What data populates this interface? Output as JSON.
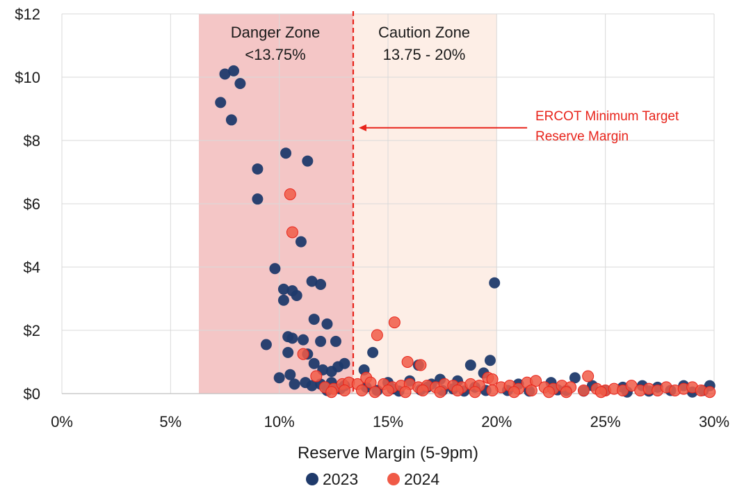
{
  "chart_data": {
    "type": "scatter",
    "xlabel": "Reserve Margin (5-9pm)",
    "ylabel": "",
    "xlim": [
      0,
      30
    ],
    "ylim": [
      0,
      12
    ],
    "x_ticks": [
      0,
      5,
      10,
      15,
      20,
      25,
      30
    ],
    "x_tick_labels": [
      "0%",
      "5%",
      "10%",
      "15%",
      "20%",
      "25%",
      "30%"
    ],
    "y_ticks": [
      0,
      2,
      4,
      6,
      8,
      10,
      12
    ],
    "y_tick_labels": [
      "$0",
      "$2",
      "$4",
      "$6",
      "$8",
      "$10",
      "$12"
    ],
    "grid": true,
    "legend_position": "bottom",
    "zones": [
      {
        "name": "danger-zone",
        "title": "Danger Zone",
        "range_label": "<13.75%",
        "x_from": 6.3,
        "x_to": 13.4,
        "color": "#f4c6c6"
      },
      {
        "name": "caution-zone",
        "title": "Caution Zone",
        "range_label": "13.75 - 20%",
        "x_from": 13.4,
        "x_to": 20.0,
        "color": "#fdeee6"
      }
    ],
    "reference_line": {
      "x": 13.4,
      "color": "#e8231a",
      "label_line1": "ERCOT Minimum Target",
      "label_line2": "Reserve Margin",
      "arrow_from_x": 21.4,
      "arrow_y": 8.4
    },
    "series": [
      {
        "name": "2023",
        "color": "#1f3a6b",
        "points": [
          [
            7.3,
            9.2
          ],
          [
            7.5,
            10.1
          ],
          [
            7.8,
            8.65
          ],
          [
            7.9,
            10.2
          ],
          [
            8.2,
            9.8
          ],
          [
            9.0,
            7.1
          ],
          [
            9.0,
            6.15
          ],
          [
            10.3,
            7.6
          ],
          [
            11.3,
            7.35
          ],
          [
            11.0,
            4.8
          ],
          [
            9.8,
            3.95
          ],
          [
            10.2,
            3.3
          ],
          [
            10.2,
            2.95
          ],
          [
            10.6,
            3.25
          ],
          [
            10.8,
            3.1
          ],
          [
            11.5,
            3.55
          ],
          [
            11.9,
            3.45
          ],
          [
            11.6,
            2.35
          ],
          [
            12.2,
            2.2
          ],
          [
            9.4,
            1.55
          ],
          [
            10.4,
            1.8
          ],
          [
            10.6,
            1.75
          ],
          [
            11.1,
            1.7
          ],
          [
            11.9,
            1.65
          ],
          [
            12.6,
            1.65
          ],
          [
            10.4,
            1.3
          ],
          [
            11.3,
            1.25
          ],
          [
            11.6,
            0.95
          ],
          [
            12.0,
            0.75
          ],
          [
            12.4,
            0.7
          ],
          [
            12.7,
            0.85
          ],
          [
            13.0,
            0.95
          ],
          [
            10.0,
            0.5
          ],
          [
            10.5,
            0.6
          ],
          [
            10.7,
            0.3
          ],
          [
            11.2,
            0.35
          ],
          [
            11.5,
            0.25
          ],
          [
            11.9,
            0.3
          ],
          [
            12.4,
            0.35
          ],
          [
            13.0,
            0.25
          ],
          [
            19.9,
            3.5
          ],
          [
            14.3,
            1.3
          ],
          [
            13.9,
            0.75
          ],
          [
            16.4,
            0.9
          ],
          [
            18.8,
            0.9
          ],
          [
            19.7,
            1.05
          ],
          [
            19.4,
            0.65
          ],
          [
            15.0,
            0.35
          ],
          [
            16.0,
            0.4
          ],
          [
            17.0,
            0.3
          ],
          [
            17.4,
            0.45
          ],
          [
            18.2,
            0.4
          ],
          [
            21.0,
            0.3
          ],
          [
            22.5,
            0.35
          ],
          [
            23.6,
            0.5
          ],
          [
            24.4,
            0.25
          ],
          [
            25.8,
            0.2
          ],
          [
            26.7,
            0.25
          ],
          [
            27.4,
            0.2
          ],
          [
            28.6,
            0.25
          ],
          [
            29.8,
            0.25
          ],
          [
            20.5,
            0.1
          ],
          [
            21.5,
            0.08
          ],
          [
            22.8,
            0.12
          ],
          [
            23.2,
            0.1
          ],
          [
            24.0,
            0.08
          ],
          [
            25.0,
            0.1
          ],
          [
            26.0,
            0.05
          ],
          [
            27.0,
            0.08
          ],
          [
            28.0,
            0.1
          ],
          [
            29.0,
            0.05
          ],
          [
            29.5,
            0.1
          ],
          [
            14.5,
            0.1
          ],
          [
            15.5,
            0.08
          ],
          [
            16.5,
            0.12
          ],
          [
            17.5,
            0.1
          ],
          [
            18.5,
            0.08
          ],
          [
            19.5,
            0.1
          ],
          [
            14.0,
            0.2
          ],
          [
            15.2,
            0.15
          ],
          [
            16.8,
            0.2
          ],
          [
            18.0,
            0.15
          ],
          [
            19.0,
            0.2
          ],
          [
            12.2,
            0.1
          ],
          [
            12.8,
            0.15
          ]
        ]
      },
      {
        "name": "2024",
        "color": "#f05a47",
        "points": [
          [
            10.5,
            6.3
          ],
          [
            10.6,
            5.1
          ],
          [
            11.1,
            1.25
          ],
          [
            11.7,
            0.55
          ],
          [
            12.1,
            0.2
          ],
          [
            12.5,
            0.15
          ],
          [
            12.9,
            0.3
          ],
          [
            13.2,
            0.35
          ],
          [
            13.6,
            0.3
          ],
          [
            14.0,
            0.5
          ],
          [
            14.2,
            0.35
          ],
          [
            14.5,
            1.85
          ],
          [
            15.3,
            2.25
          ],
          [
            15.9,
            1.0
          ],
          [
            16.5,
            0.9
          ],
          [
            14.8,
            0.3
          ],
          [
            15.2,
            0.2
          ],
          [
            15.6,
            0.25
          ],
          [
            16.0,
            0.3
          ],
          [
            16.4,
            0.2
          ],
          [
            16.8,
            0.25
          ],
          [
            17.2,
            0.2
          ],
          [
            17.6,
            0.3
          ],
          [
            18.0,
            0.25
          ],
          [
            18.4,
            0.2
          ],
          [
            18.8,
            0.3
          ],
          [
            19.2,
            0.25
          ],
          [
            19.6,
            0.5
          ],
          [
            19.8,
            0.45
          ],
          [
            20.2,
            0.2
          ],
          [
            20.6,
            0.25
          ],
          [
            21.0,
            0.15
          ],
          [
            21.4,
            0.35
          ],
          [
            21.8,
            0.4
          ],
          [
            22.2,
            0.2
          ],
          [
            22.6,
            0.15
          ],
          [
            23.0,
            0.25
          ],
          [
            23.4,
            0.2
          ],
          [
            24.2,
            0.55
          ],
          [
            24.6,
            0.15
          ],
          [
            25.0,
            0.1
          ],
          [
            25.4,
            0.15
          ],
          [
            25.8,
            0.1
          ],
          [
            26.2,
            0.25
          ],
          [
            26.6,
            0.1
          ],
          [
            27.0,
            0.15
          ],
          [
            27.4,
            0.1
          ],
          [
            27.8,
            0.2
          ],
          [
            28.2,
            0.1
          ],
          [
            28.6,
            0.15
          ],
          [
            29.0,
            0.2
          ],
          [
            29.4,
            0.1
          ],
          [
            29.8,
            0.05
          ],
          [
            13.8,
            0.1
          ],
          [
            14.4,
            0.05
          ],
          [
            15.0,
            0.1
          ],
          [
            15.8,
            0.05
          ],
          [
            16.6,
            0.1
          ],
          [
            17.4,
            0.05
          ],
          [
            18.2,
            0.1
          ],
          [
            19.0,
            0.05
          ],
          [
            19.8,
            0.1
          ],
          [
            20.8,
            0.05
          ],
          [
            21.6,
            0.1
          ],
          [
            22.4,
            0.05
          ],
          [
            23.2,
            0.05
          ],
          [
            24.0,
            0.1
          ],
          [
            24.8,
            0.05
          ],
          [
            12.4,
            0.05
          ],
          [
            13.0,
            0.1
          ]
        ]
      }
    ]
  }
}
